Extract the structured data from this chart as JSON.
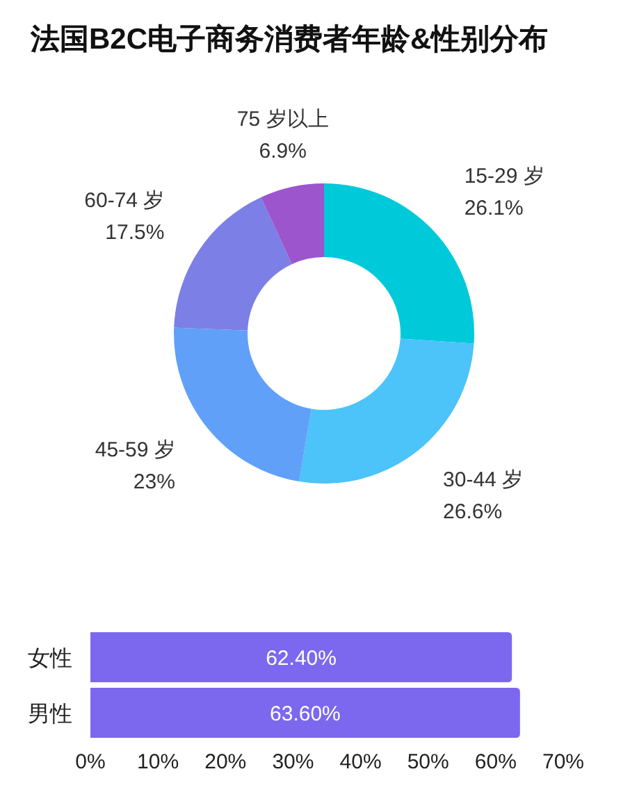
{
  "chart_data": [
    {
      "type": "donut",
      "title": "法国B2C电子商务消费者年龄&性别分布",
      "categories": [
        "15-29 岁",
        "30-44 岁",
        "45-59 岁",
        "60-74 岁",
        "75 岁以上"
      ],
      "values": [
        26.1,
        26.6,
        23,
        17.5,
        6.9
      ],
      "colors": [
        "#00c9d9",
        "#4cc3f9",
        "#60a0f8",
        "#7b7fe6",
        "#9c55cc"
      ],
      "value_labels": [
        "26.1%",
        "26.6%",
        "23%",
        "17.5%",
        "6.9%"
      ]
    },
    {
      "type": "bar",
      "orientation": "horizontal",
      "categories": [
        "女性",
        "男性"
      ],
      "values": [
        62.4,
        63.6
      ],
      "color": "#7b68ee",
      "value_labels": [
        "62.40%",
        "63.60%"
      ],
      "xlim": [
        0,
        70
      ],
      "xticks": [
        {
          "value": 0,
          "label": "0%"
        },
        {
          "value": 10,
          "label": "10%"
        },
        {
          "value": 20,
          "label": "20%"
        },
        {
          "value": 30,
          "label": "30%"
        },
        {
          "value": 40,
          "label": "40%"
        },
        {
          "value": 50,
          "label": "50%"
        },
        {
          "value": 60,
          "label": "60%"
        },
        {
          "value": 70,
          "label": "70%"
        }
      ]
    }
  ]
}
